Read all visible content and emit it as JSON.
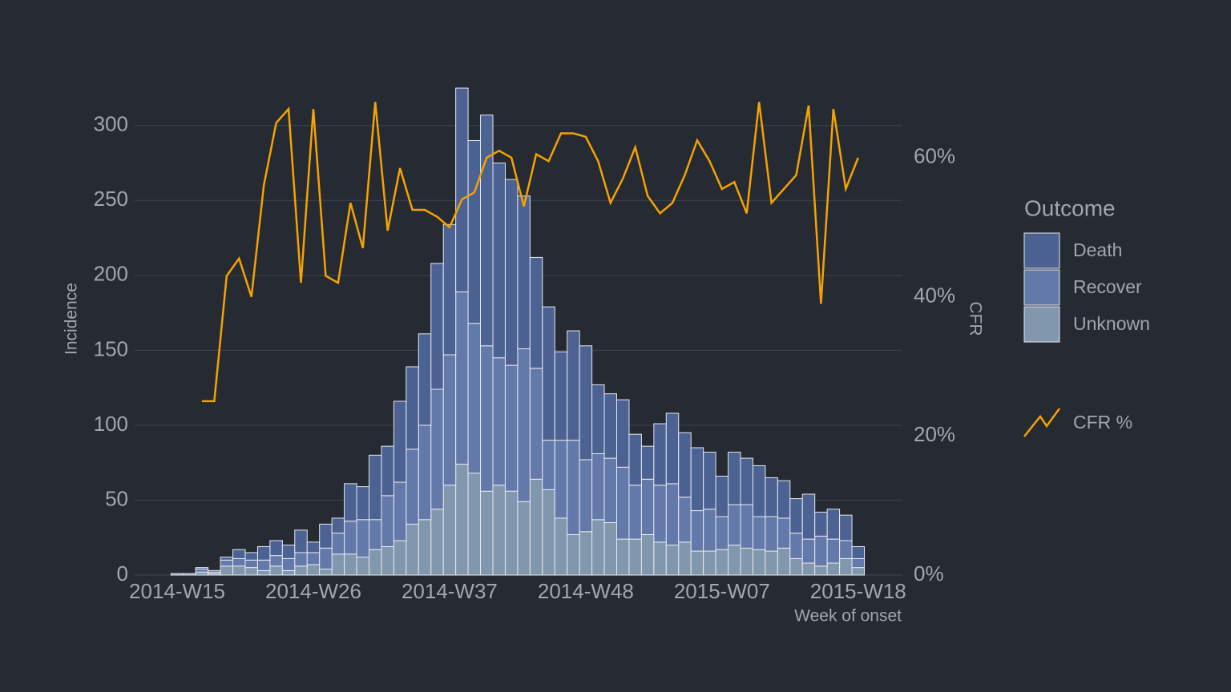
{
  "chart_data": {
    "type": "bar",
    "stacked": true,
    "x_label": "Week of onset",
    "y_label": "Incidence",
    "y2_label": "CFR",
    "legend_title": "Outcome",
    "legend": "right",
    "grid": true,
    "categories": [
      "2014-W15",
      null,
      null,
      null,
      null,
      null,
      null,
      null,
      null,
      null,
      null,
      "2014-W26",
      null,
      null,
      null,
      null,
      null,
      null,
      null,
      null,
      null,
      null,
      "2014-W37",
      null,
      null,
      null,
      null,
      null,
      null,
      null,
      null,
      null,
      null,
      "2014-W48",
      null,
      null,
      null,
      null,
      null,
      null,
      null,
      null,
      null,
      null,
      "2015-W07",
      null,
      null,
      null,
      null,
      null,
      null,
      null,
      null,
      null,
      null,
      "2015-W18"
    ],
    "ylim": [
      0,
      325
    ],
    "yticks": [
      0,
      50,
      100,
      150,
      200,
      250,
      300
    ],
    "y2lim": [
      0,
      70
    ],
    "y2ticks": [
      {
        "value": 0,
        "label": "0%"
      },
      {
        "value": 20,
        "label": "20%"
      },
      {
        "value": 40,
        "label": "40%"
      },
      {
        "value": 60,
        "label": "60%"
      }
    ],
    "series": [
      {
        "name": "Unknown",
        "type": "bar",
        "color": "#8197ad",
        "values": [
          1,
          1,
          2,
          1,
          6,
          6,
          5,
          3,
          6,
          3,
          6,
          7,
          4,
          14,
          14,
          12,
          17,
          19,
          23,
          34,
          37,
          44,
          60,
          74,
          68,
          56,
          60,
          56,
          49,
          64,
          57,
          38,
          27,
          29,
          37,
          35,
          24,
          24,
          27,
          22,
          20,
          22,
          16,
          16,
          17,
          20,
          18,
          17,
          16,
          18,
          11,
          8,
          6,
          8,
          11,
          5
        ]
      },
      {
        "name": "Recover",
        "type": "bar",
        "color": "#6379aa",
        "values": [
          0,
          0,
          2,
          1,
          4,
          5,
          5,
          7,
          7,
          8,
          9,
          8,
          14,
          14,
          22,
          25,
          20,
          34,
          39,
          50,
          63,
          80,
          87,
          115,
          100,
          97,
          85,
          84,
          102,
          74,
          33,
          52,
          63,
          48,
          44,
          43,
          48,
          36,
          37,
          38,
          41,
          30,
          27,
          28,
          22,
          27,
          29,
          22,
          23,
          20,
          17,
          16,
          20,
          16,
          12,
          6
        ]
      },
      {
        "name": "Death",
        "type": "bar",
        "color": "#4b6292",
        "values": [
          0,
          0,
          1,
          1,
          2,
          6,
          5,
          9,
          10,
          9,
          15,
          7,
          16,
          10,
          25,
          22,
          43,
          33,
          54,
          55,
          61,
          84,
          87,
          136,
          122,
          154,
          130,
          124,
          102,
          74,
          89,
          59,
          73,
          76,
          46,
          43,
          45,
          34,
          22,
          41,
          47,
          43,
          42,
          38,
          27,
          35,
          31,
          34,
          26,
          25,
          23,
          30,
          16,
          20,
          17,
          8
        ]
      },
      {
        "name": "CFR %",
        "type": "line",
        "axis": "y2",
        "color": "#f5a300",
        "values": [
          null,
          null,
          25,
          25,
          43,
          45.5,
          40,
          56,
          65,
          67,
          42,
          67,
          43,
          42,
          53.5,
          47,
          68,
          49.5,
          58.5,
          52.5,
          52.5,
          51.5,
          50,
          54,
          55,
          60,
          61,
          60,
          53,
          60.5,
          59.5,
          63.5,
          63.5,
          63,
          59.5,
          53.5,
          57,
          61.5,
          54.5,
          52,
          53.5,
          57.5,
          62.5,
          59.5,
          55.5,
          56.5,
          52,
          68,
          53.5,
          55.5,
          57.5,
          67.5,
          39,
          67,
          55.5,
          60
        ]
      }
    ]
  }
}
